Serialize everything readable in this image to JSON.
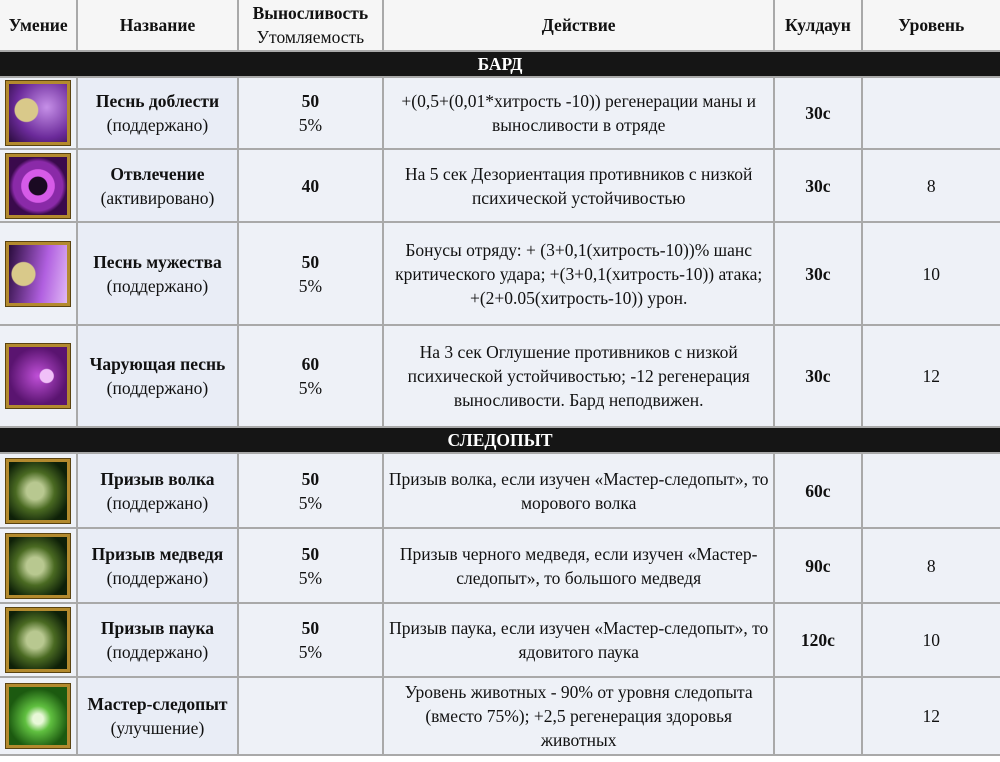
{
  "headers": {
    "skill": "Умение",
    "name": "Название",
    "stamina": "Выносливость",
    "fatigue": "Утомляемость",
    "action": "Действие",
    "cooldown": "Кулдаун",
    "level": "Уровень"
  },
  "sections": [
    {
      "title": "БАРД",
      "rows": [
        {
          "icon": "bard-horn-icon",
          "name": "Песнь доблести",
          "type": "(поддержано)",
          "stamina": "50",
          "fatigue": "5%",
          "action": "+(0,5+(0,01*хитрость -10)) регенерации маны и выносливости в отряде",
          "cooldown": "30с",
          "level": ""
        },
        {
          "icon": "bard-distraction-icon",
          "name": "Отвлечение",
          "type": "(активировано)",
          "stamina": "40",
          "fatigue": "",
          "action": "На 5 сек Дезориентация противников с низкой психической устойчивостью",
          "cooldown": "30с",
          "level": "8"
        },
        {
          "icon": "bard-courage-icon",
          "name": "Песнь мужества",
          "type": "(поддержано)",
          "stamina": "50",
          "fatigue": "5%",
          "action": "Бонусы отряду: + (3+0,1(хитрость-10))% шанс критического удара; +(3+0,1(хитрость-10)) атака; +(2+0.05(хитрость-10)) урон.",
          "cooldown": "30с",
          "level": "10"
        },
        {
          "icon": "bard-charm-song-icon",
          "name": "Чарующая песнь",
          "type": "(поддержано)",
          "stamina": "60",
          "fatigue": "5%",
          "action": "На 3 сек Оглушение противников с низкой психической устойчивостью; -12 регенерация выносливости. Бард неподвижен.",
          "cooldown": "30с",
          "level": "12"
        }
      ]
    },
    {
      "title": "СЛЕДОПЫТ",
      "rows": [
        {
          "icon": "wolf-icon",
          "name": "Призыв волка",
          "type": "(поддержано)",
          "stamina": "50",
          "fatigue": "5%",
          "action": "Призыв волка, если изучен «Мастер-следопыт», то морового волка",
          "cooldown": "60с",
          "level": ""
        },
        {
          "icon": "bear-icon",
          "name": "Призыв медведя",
          "type": "(поддержано)",
          "stamina": "50",
          "fatigue": "5%",
          "action": "Призыв черного медведя, если изучен «Мастер-следопыт», то большого медведя",
          "cooldown": "90с",
          "level": "8"
        },
        {
          "icon": "spider-icon",
          "name": "Призыв паука",
          "type": "(поддержано)",
          "stamina": "50",
          "fatigue": "5%",
          "action": "Призыв паука, если изучен «Мастер-следопыт», то ядовитого паука",
          "cooldown": "120с",
          "level": "10"
        },
        {
          "icon": "master-ranger-arrow-icon",
          "name": "Мастер-следопыт",
          "type": "(улучшение)",
          "stamina": "",
          "fatigue": "",
          "action": "Уровень животных - 90% от уровня следопыта (вместо 75%); +2,5 регенерация здоровья животных",
          "cooldown": "",
          "level": "12"
        }
      ]
    }
  ]
}
